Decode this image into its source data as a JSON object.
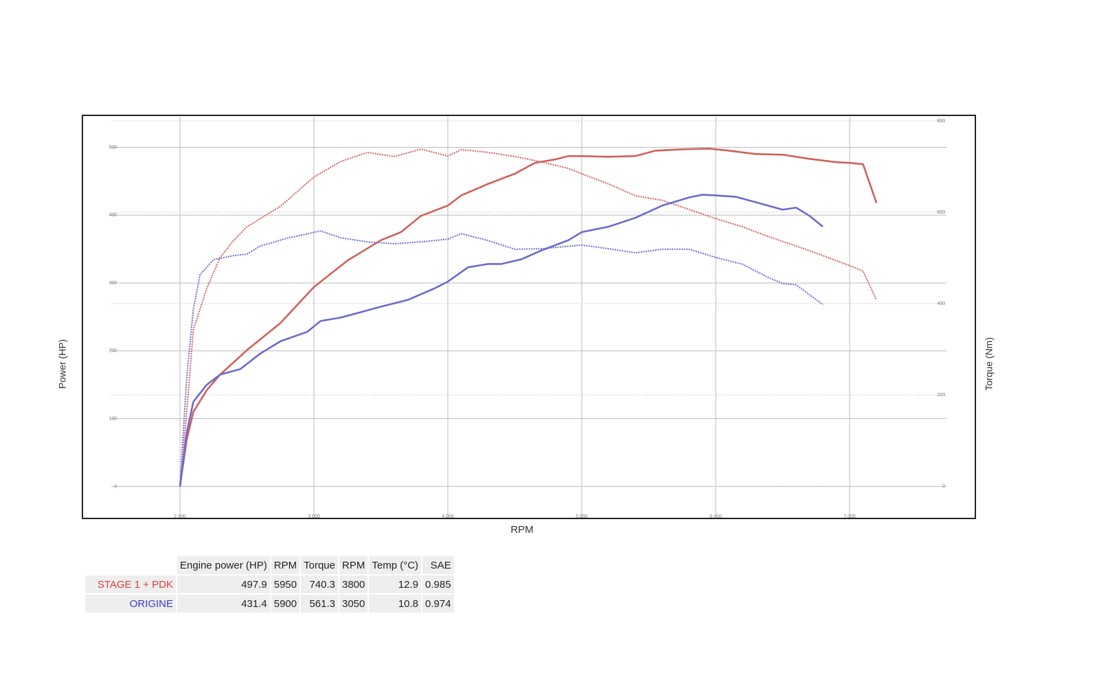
{
  "chart_data": {
    "type": "line",
    "x_label": "RPM",
    "y_label": "Power (HP)",
    "y2_label": "Torque (Nm)",
    "xlim": [
      1487,
      7723
    ],
    "ylim": [
      -40,
      545
    ],
    "y2lim": [
      -60,
      809
    ],
    "xticks": [
      {
        "value": 2000,
        "label": "2,000"
      },
      {
        "value": 3000,
        "label": "3,000"
      },
      {
        "value": 4000,
        "label": "4,000"
      },
      {
        "value": 5000,
        "label": "5,000"
      },
      {
        "value": 6000,
        "label": "6,000"
      },
      {
        "value": 7000,
        "label": "7,000"
      }
    ],
    "yticks": [
      0,
      100,
      200,
      300,
      400,
      500
    ],
    "y2ticks": [
      0,
      200,
      400,
      600,
      800
    ],
    "grid": true,
    "series": [
      {
        "color": "#d0605a",
        "style": "solid",
        "axis": "y",
        "x": [
          2000,
          2050,
          2100,
          2200,
          2300,
          2500,
          2750,
          3000,
          3250,
          3500,
          3650,
          3800,
          4000,
          4100,
          4300,
          4500,
          4650,
          4800,
          4900,
          5000,
          5200,
          5400,
          5550,
          5750,
          5950,
          6100,
          6300,
          6500,
          6700,
          6900,
          7000,
          7100,
          7200
        ],
        "values": [
          0,
          69,
          110,
          142,
          165,
          201,
          241,
          294,
          333,
          363,
          375,
          399,
          414,
          429,
          446,
          461,
          477,
          482,
          487,
          487,
          486,
          487,
          495,
          497,
          498,
          495,
          490,
          489,
          483,
          478,
          477,
          475,
          418
        ]
      },
      {
        "color": "#d0605a",
        "style": "dotted",
        "axis": "y2",
        "x": [
          2000,
          2050,
          2100,
          2200,
          2300,
          2400,
          2500,
          2750,
          3000,
          3200,
          3400,
          3600,
          3800,
          4000,
          4100,
          4300,
          4500,
          4700,
          4900,
          5000,
          5200,
          5400,
          5600,
          5800,
          6000,
          6200,
          6400,
          6600,
          6800,
          7000,
          7100,
          7200
        ],
        "values": [
          0,
          162,
          343,
          433,
          501,
          538,
          568,
          613,
          677,
          711,
          731,
          722,
          738,
          723,
          737,
          731,
          722,
          710,
          696,
          684,
          662,
          636,
          626,
          606,
          586,
          568,
          546,
          526,
          505,
          483,
          471,
          408
        ]
      },
      {
        "color": "#6a6ad0",
        "style": "solid",
        "axis": "y",
        "x": [
          2000,
          2050,
          2100,
          2200,
          2300,
          2450,
          2600,
          2750,
          2950,
          3050,
          3200,
          3350,
          3500,
          3700,
          3900,
          4000,
          4150,
          4300,
          4400,
          4550,
          4700,
          4900,
          5000,
          5200,
          5400,
          5600,
          5800,
          5900,
          6000,
          6150,
          6300,
          6500,
          6600,
          6700,
          6800
        ],
        "values": [
          0,
          79,
          125,
          150,
          165,
          173,
          196,
          214,
          228,
          244,
          249,
          257,
          265,
          275,
          292,
          302,
          323,
          328,
          328,
          335,
          348,
          363,
          375,
          383,
          396,
          414,
          426,
          430,
          429,
          427,
          419,
          408,
          411,
          399,
          383
        ]
      },
      {
        "color": "#6a6ad0",
        "style": "dotted",
        "axis": "y2",
        "x": [
          2000,
          2050,
          2100,
          2150,
          2250,
          2400,
          2500,
          2600,
          2800,
          3050,
          3200,
          3400,
          3600,
          3800,
          4000,
          4100,
          4300,
          4500,
          4700,
          5000,
          5200,
          5400,
          5600,
          5800,
          6000,
          6200,
          6400,
          6500,
          6600,
          6800
        ],
        "values": [
          0,
          238,
          388,
          463,
          496,
          505,
          508,
          526,
          543,
          559,
          544,
          535,
          531,
          535,
          541,
          553,
          538,
          519,
          520,
          528,
          520,
          511,
          519,
          519,
          501,
          486,
          456,
          444,
          441,
          398
        ]
      }
    ]
  },
  "table": {
    "header": [
      "Engine power (HP)",
      "RPM",
      "Torque",
      "RPM",
      "Temp (°C)",
      "SAE"
    ],
    "rows": [
      {
        "label": "STAGE 1 + PDK",
        "color": "#d9403a",
        "cells": [
          497.9,
          5950,
          740.3,
          3800,
          12.9,
          0.985
        ]
      },
      {
        "label": "ORIGINE",
        "color": "#3a3ad0",
        "cells": [
          431.4,
          5900,
          561.3,
          3050,
          10.8,
          0.974
        ]
      }
    ]
  }
}
